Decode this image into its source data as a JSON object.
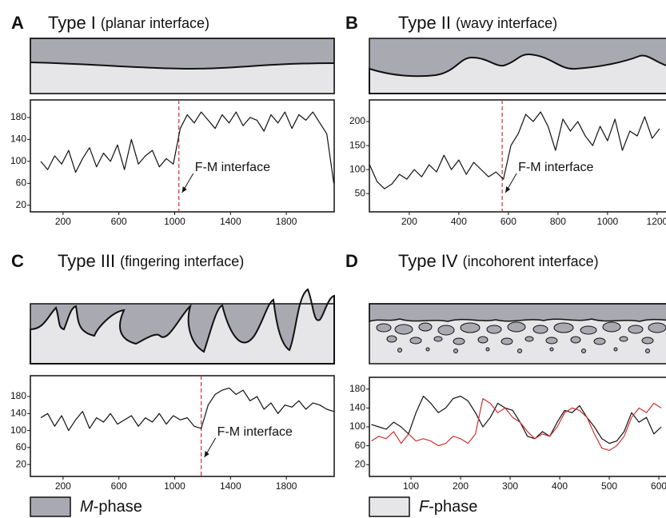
{
  "chart_data": [
    {
      "type": "line",
      "panel": "A",
      "title": "Type I",
      "subtitle": "(planar interface)",
      "x": [
        40,
        90,
        140,
        190,
        240,
        290,
        340,
        390,
        440,
        490,
        540,
        590,
        640,
        690,
        740,
        790,
        840,
        890,
        940,
        990,
        1040,
        1090,
        1140,
        1190,
        1240,
        1290,
        1340,
        1390,
        1440,
        1490,
        1540,
        1590,
        1640,
        1690,
        1740,
        1790,
        1840,
        1890,
        1940,
        1990,
        2040,
        2090,
        2140
      ],
      "series": [
        {
          "color": "#111111",
          "values": [
            100,
            85,
            110,
            95,
            120,
            80,
            105,
            125,
            90,
            115,
            100,
            130,
            85,
            140,
            95,
            110,
            120,
            90,
            105,
            95,
            160,
            185,
            170,
            190,
            175,
            160,
            185,
            170,
            190,
            165,
            180,
            175,
            155,
            185,
            170,
            190,
            160,
            185,
            175,
            190,
            170,
            150,
            60
          ]
        }
      ],
      "xlim": [
        -34,
        2143
      ],
      "ylim": [
        8,
        212
      ],
      "xticks": [
        200,
        600,
        1000,
        1400,
        1800
      ],
      "yticks": [
        20,
        60,
        100,
        140,
        180
      ],
      "annotation": {
        "text": "F-M interface",
        "x": 1030
      }
    },
    {
      "type": "line",
      "panel": "B",
      "title": "Type II",
      "subtitle": "(wavy interface)",
      "x": [
        40,
        70,
        100,
        130,
        160,
        190,
        220,
        250,
        280,
        310,
        340,
        370,
        400,
        430,
        460,
        490,
        520,
        550,
        580,
        610,
        640,
        670,
        700,
        730,
        760,
        790,
        820,
        850,
        880,
        910,
        940,
        970,
        1000,
        1030,
        1060,
        1090,
        1120,
        1150,
        1180,
        1210
      ],
      "series": [
        {
          "color": "#111111",
          "values": [
            110,
            75,
            60,
            70,
            90,
            80,
            100,
            85,
            110,
            95,
            130,
            100,
            120,
            90,
            115,
            100,
            85,
            95,
            80,
            150,
            175,
            215,
            200,
            220,
            190,
            140,
            205,
            180,
            200,
            170,
            150,
            190,
            160,
            205,
            140,
            180,
            170,
            210,
            165,
            185
          ]
        }
      ],
      "xlim": [
        39,
        1323
      ],
      "ylim": [
        12,
        245
      ],
      "xticks": [
        200,
        400,
        600,
        800,
        1000,
        1200
      ],
      "yticks": [
        50,
        100,
        150,
        200
      ],
      "annotation": {
        "text": "F-M interface",
        "x": 575
      }
    },
    {
      "type": "line",
      "panel": "C",
      "title": "Type III",
      "subtitle": "(fingering interface)",
      "x": [
        40,
        90,
        140,
        190,
        240,
        290,
        340,
        390,
        440,
        490,
        540,
        590,
        640,
        690,
        740,
        790,
        840,
        890,
        940,
        990,
        1040,
        1090,
        1140,
        1190,
        1240,
        1290,
        1340,
        1390,
        1440,
        1490,
        1540,
        1590,
        1640,
        1690,
        1740,
        1790,
        1840,
        1890,
        1940,
        1990,
        2040,
        2090,
        2140
      ],
      "series": [
        {
          "color": "#111111",
          "values": [
            130,
            140,
            110,
            135,
            100,
            125,
            145,
            105,
            130,
            120,
            140,
            115,
            125,
            135,
            110,
            130,
            120,
            140,
            115,
            135,
            125,
            130,
            110,
            105,
            160,
            185,
            195,
            200,
            185,
            195,
            170,
            180,
            150,
            165,
            140,
            160,
            155,
            170,
            150,
            165,
            160,
            150,
            145
          ]
        }
      ],
      "xlim": [
        -34,
        2143
      ],
      "ylim": [
        -8,
        229
      ],
      "xticks": [
        200,
        600,
        1000,
        1400,
        1800
      ],
      "yticks": [
        20,
        60,
        100,
        140,
        180
      ],
      "annotation": {
        "text": "F-M interface",
        "x": 1190
      }
    },
    {
      "type": "line",
      "panel": "D",
      "title": "Type IV",
      "subtitle": "(incohorent interface)",
      "x": [
        20,
        35,
        50,
        65,
        80,
        95,
        110,
        125,
        140,
        155,
        170,
        185,
        200,
        215,
        230,
        245,
        260,
        275,
        290,
        305,
        320,
        335,
        350,
        365,
        380,
        395,
        410,
        425,
        440,
        455,
        470,
        485,
        500,
        515,
        530,
        545,
        560,
        575,
        590,
        605
      ],
      "series": [
        {
          "color": "#111111",
          "values": [
            105,
            100,
            95,
            110,
            100,
            85,
            130,
            165,
            150,
            130,
            140,
            160,
            165,
            155,
            130,
            100,
            120,
            150,
            140,
            135,
            110,
            80,
            75,
            90,
            80,
            110,
            135,
            130,
            145,
            120,
            100,
            75,
            65,
            70,
            90,
            130,
            110,
            120,
            85,
            100
          ]
        },
        {
          "color": "#d0312d",
          "values": [
            70,
            80,
            75,
            90,
            65,
            85,
            70,
            75,
            70,
            60,
            65,
            80,
            75,
            65,
            85,
            160,
            150,
            130,
            140,
            120,
            110,
            90,
            75,
            85,
            80,
            100,
            130,
            140,
            135,
            120,
            85,
            55,
            50,
            60,
            80,
            120,
            140,
            130,
            150,
            140
          ]
        }
      ],
      "xlim": [
        16,
        658
      ],
      "ylim": [
        -5,
        205
      ],
      "xticks": [
        100,
        200,
        300,
        400,
        500,
        600
      ],
      "yticks": [
        20,
        60,
        100,
        140,
        180
      ]
    }
  ],
  "legend": [
    {
      "italic": "M",
      "rest": "-phase",
      "color": "#a9a9b2"
    },
    {
      "italic": "F",
      "rest": "-phase",
      "color": "#e6e6e8"
    }
  ]
}
